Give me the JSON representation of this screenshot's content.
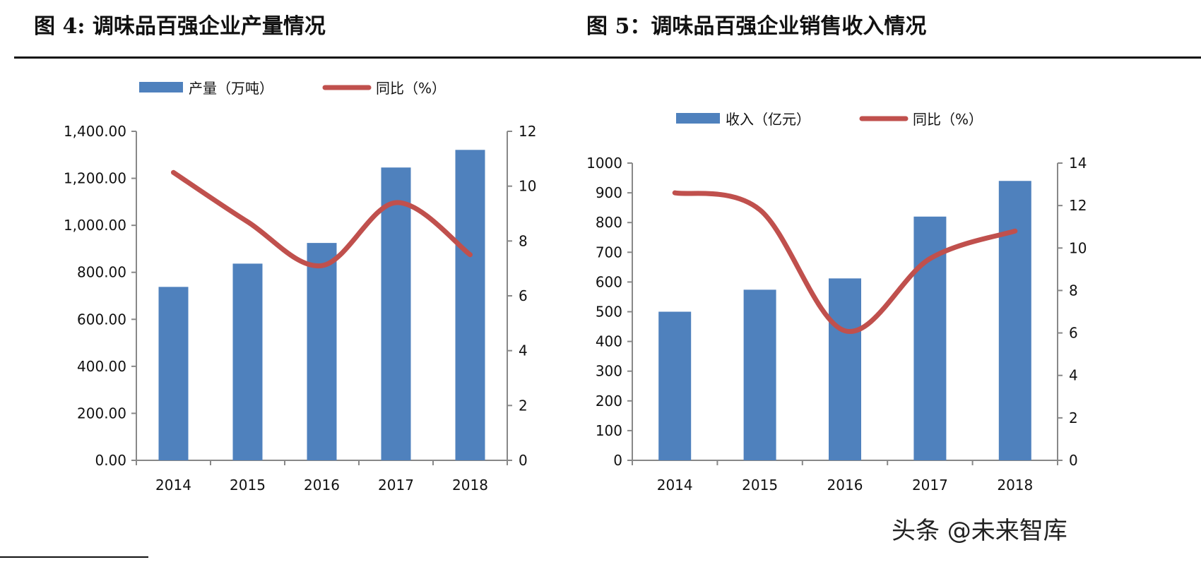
{
  "titles": {
    "fig4": "图 4:  调味品百强企业产量情况",
    "fig5": "图 5：调味品百强企业销售收入情况"
  },
  "watermark": "头条 @未来智库",
  "colors": {
    "bar": "#4F81BD",
    "line": "#C0504D",
    "axis": "#888888"
  },
  "chart_data": [
    {
      "type": "bar+line",
      "categories": [
        "2014",
        "2015",
        "2016",
        "2017",
        "2018"
      ],
      "series": [
        {
          "name": "产量（万吨）",
          "type": "bar",
          "axis": "left",
          "values": [
            738,
            837,
            925,
            1246,
            1321
          ]
        },
        {
          "name": "同比（%）",
          "type": "line",
          "axis": "right",
          "values": [
            10.5,
            8.7,
            7.1,
            9.4,
            7.5
          ]
        }
      ],
      "y_left": {
        "lim": [
          0,
          1400
        ],
        "ticks": [
          "0.00",
          "200.00",
          "400.00",
          "600.00",
          "800.00",
          "1,000.00",
          "1,200.00",
          "1,400.00"
        ]
      },
      "y_right": {
        "lim": [
          0,
          12
        ],
        "ticks": [
          "0",
          "2",
          "4",
          "6",
          "8",
          "10",
          "12"
        ]
      },
      "legend": "top",
      "grid": false
    },
    {
      "type": "bar+line",
      "categories": [
        "2014",
        "2015",
        "2016",
        "2017",
        "2018"
      ],
      "series": [
        {
          "name": "收入（亿元）",
          "type": "bar",
          "axis": "left",
          "values": [
            500,
            574,
            612,
            820,
            940
          ]
        },
        {
          "name": "同比（%）",
          "type": "line",
          "axis": "right",
          "values": [
            12.6,
            11.8,
            6.1,
            9.5,
            10.8
          ]
        }
      ],
      "y_left": {
        "lim": [
          0,
          1000
        ],
        "ticks": [
          "0",
          "100",
          "200",
          "300",
          "400",
          "500",
          "600",
          "700",
          "800",
          "900",
          "1000"
        ]
      },
      "y_right": {
        "lim": [
          0,
          14
        ],
        "ticks": [
          "0",
          "2",
          "4",
          "6",
          "8",
          "10",
          "12",
          "14"
        ]
      },
      "legend": "top",
      "grid": false
    }
  ]
}
